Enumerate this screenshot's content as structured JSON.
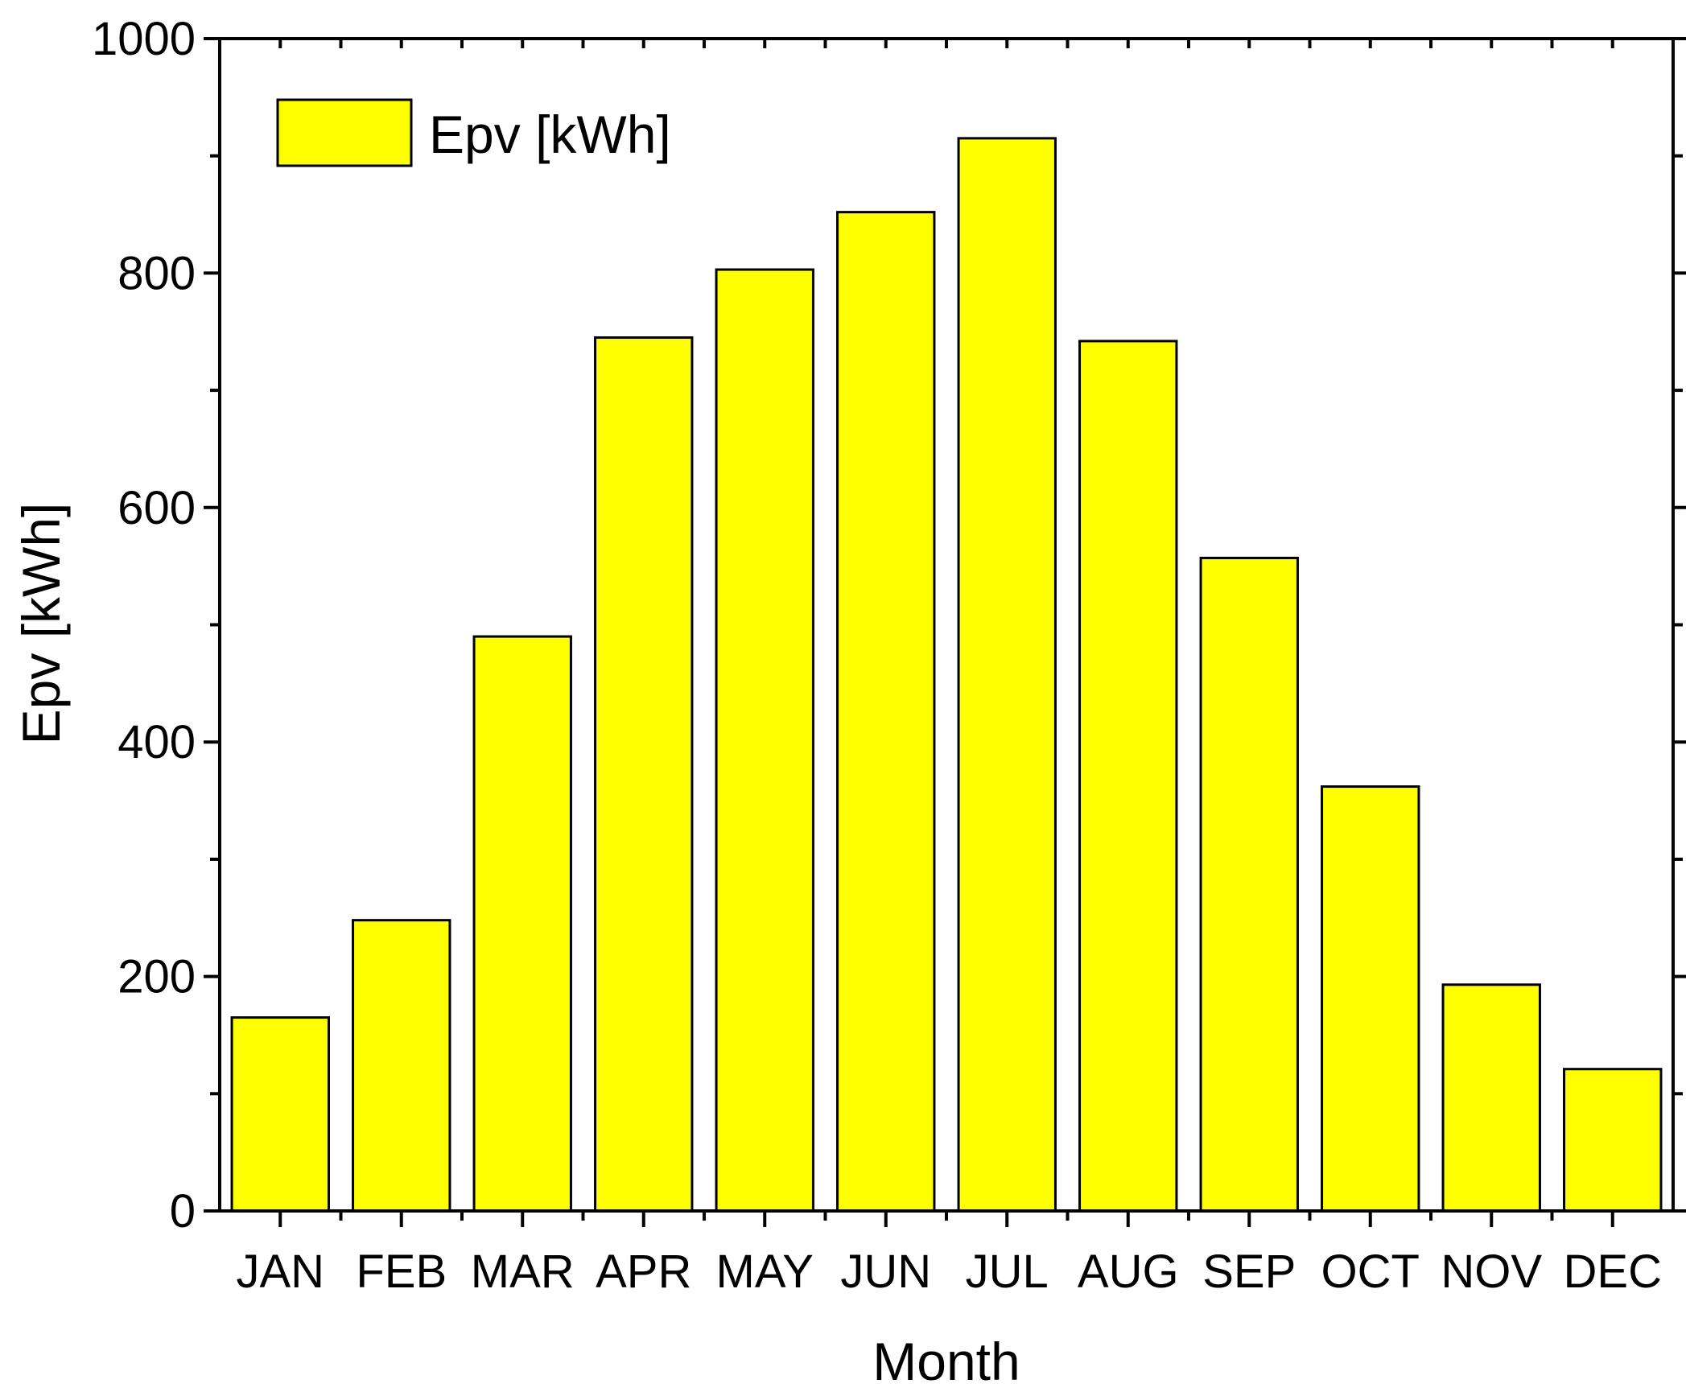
{
  "chart_data": {
    "type": "bar",
    "categories": [
      "JAN",
      "FEB",
      "MAR",
      "APR",
      "MAY",
      "JUN",
      "JUL",
      "AUG",
      "SEP",
      "OCT",
      "NOV",
      "DEC"
    ],
    "series": [
      {
        "name": "Epv [kWh]",
        "values": [
          165,
          248,
          490,
          745,
          803,
          852,
          915,
          742,
          557,
          362,
          193,
          121
        ],
        "color": "#ffff00"
      }
    ],
    "title": "",
    "xlabel": "Month",
    "ylabel": "Epv [kWh]",
    "ylim": [
      0,
      1000
    ],
    "yticks": [
      "0",
      "200",
      "400",
      "600",
      "800",
      "1000"
    ],
    "legend": {
      "label": "Epv [kWh]",
      "position": "top-left"
    },
    "grid": false
  }
}
